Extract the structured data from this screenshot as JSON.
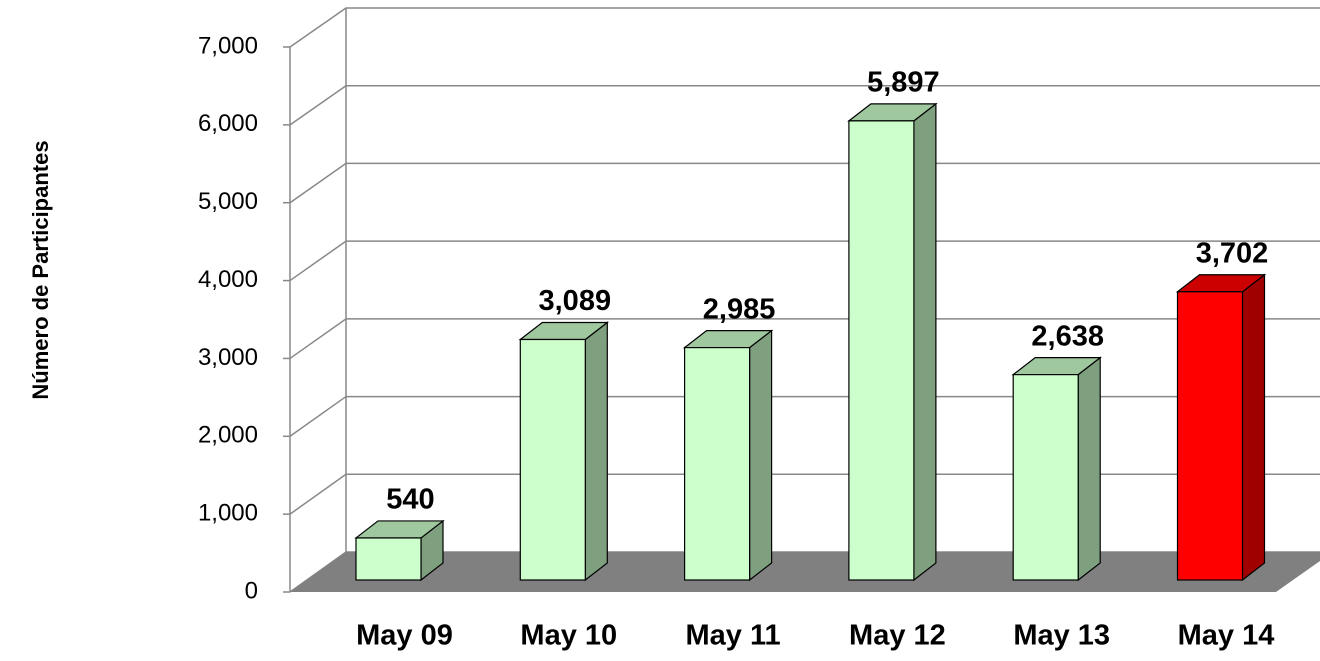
{
  "chart_data": {
    "type": "bar3d",
    "y_label": "Número de Participantes",
    "categories": [
      "May 09",
      "May 10",
      "May 11",
      "May 12",
      "May 13",
      "May 14"
    ],
    "values": [
      540,
      3089,
      2985,
      5897,
      2638,
      3702
    ],
    "value_labels": [
      "540",
      "3,089",
      "2,985",
      "5,897",
      "2,638",
      "3,702"
    ],
    "colors": [
      "#ccffcc",
      "#ccffcc",
      "#ccffcc",
      "#ccffcc",
      "#ccffcc",
      "#ff0000"
    ],
    "ylim": [
      0,
      7000
    ],
    "yticks": [
      {
        "value": 0,
        "label": "0"
      },
      {
        "value": 1000,
        "label": "1,000"
      },
      {
        "value": 2000,
        "label": "2,000"
      },
      {
        "value": 3000,
        "label": "3,000"
      },
      {
        "value": 4000,
        "label": "4,000"
      },
      {
        "value": 5000,
        "label": "5,000"
      },
      {
        "value": 6000,
        "label": "6,000"
      },
      {
        "value": 7000,
        "label": "7,000"
      }
    ],
    "grid": true
  }
}
